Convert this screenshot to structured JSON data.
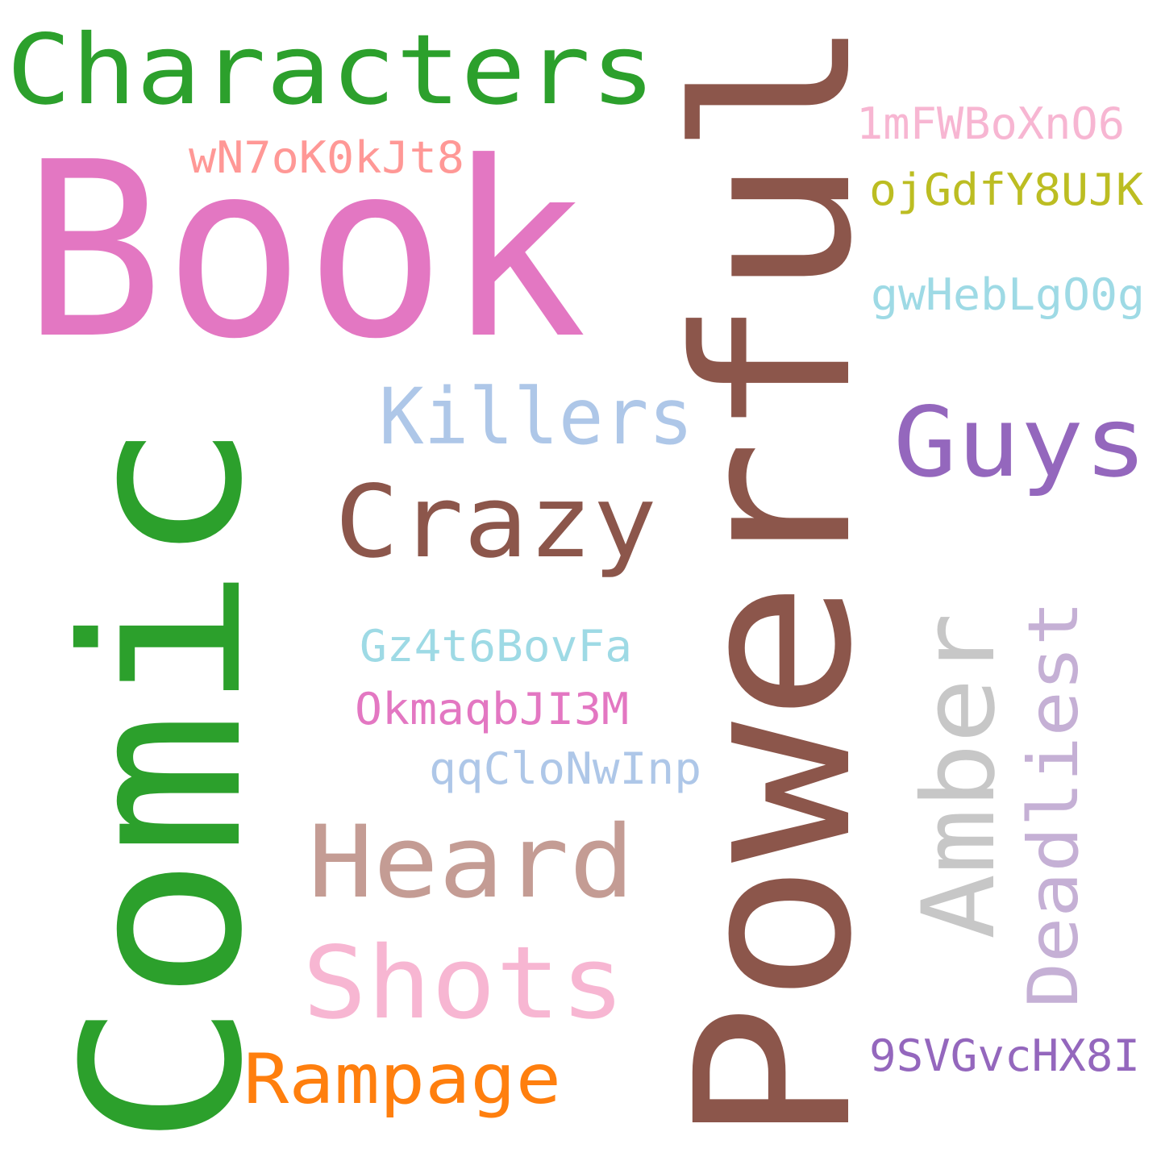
{
  "words": [
    {
      "id": "characters",
      "text": "Characters",
      "color": "#2ca02c"
    },
    {
      "id": "book",
      "text": "Book",
      "color": "#e377c2"
    },
    {
      "id": "powerful",
      "text": "Powerful",
      "color": "#8c564b"
    },
    {
      "id": "comic",
      "text": "Comic",
      "color": "#2ca02c"
    },
    {
      "id": "1mfwboxno6",
      "text": "1mFWBoXnO6",
      "color": "#f7b6d2"
    },
    {
      "id": "wn7ok0kjt8",
      "text": "wN7oK0kJt8",
      "color": "#ff9896"
    },
    {
      "id": "ojgdfy8ujk",
      "text": "ojGdfY8UJK",
      "color": "#bcbd22"
    },
    {
      "id": "gwheblgo0g",
      "text": "gwHebLgO0g",
      "color": "#9edae5"
    },
    {
      "id": "killers",
      "text": "Killers",
      "color": "#aec7e8"
    },
    {
      "id": "guys",
      "text": "Guys",
      "color": "#9467bd"
    },
    {
      "id": "crazy",
      "text": "Crazy",
      "color": "#8c564b"
    },
    {
      "id": "amber",
      "text": "Amber",
      "color": "#c7c7c7"
    },
    {
      "id": "deadliest",
      "text": "Deadliest",
      "color": "#c5b0d5"
    },
    {
      "id": "gz4t6bovfa",
      "text": "Gz4t6BovFa",
      "color": "#9edae5"
    },
    {
      "id": "okmaqbji3m",
      "text": "OkmaqbJI3M",
      "color": "#e377c2"
    },
    {
      "id": "qqclonwinp",
      "text": "qqCloNwInp",
      "color": "#aec7e8"
    },
    {
      "id": "heard",
      "text": "Heard",
      "color": "#c49c94"
    },
    {
      "id": "shots",
      "text": "Shots",
      "color": "#f7b6d2"
    },
    {
      "id": "rampage",
      "text": "Rampage",
      "color": "#ff7f0e"
    },
    {
      "id": "9svgvchx8i",
      "text": "9SVGvcHX8I",
      "color": "#9467bd"
    }
  ]
}
